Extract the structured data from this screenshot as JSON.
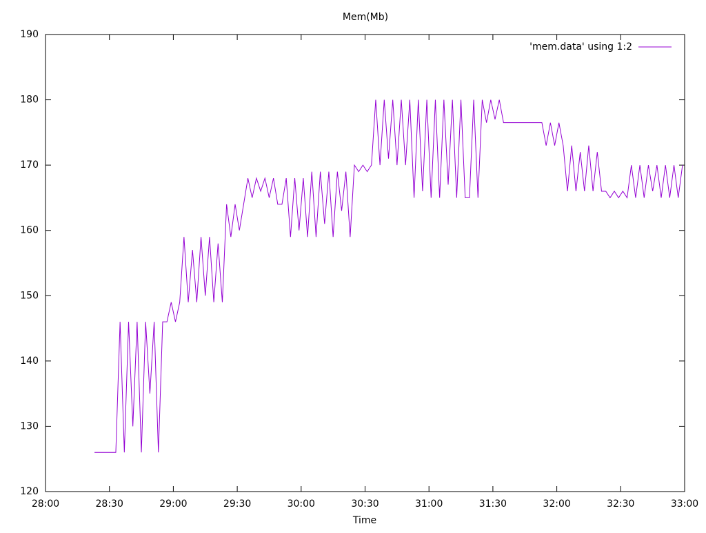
{
  "chart_data": {
    "type": "line",
    "title": "Mem(Mb)",
    "x_label": "Time",
    "x": [
      1703,
      1705,
      1707,
      1709,
      1711,
      1713,
      1715,
      1717,
      1719,
      1721,
      1723,
      1725,
      1727,
      1729,
      1731,
      1733,
      1735,
      1737,
      1739,
      1741,
      1743,
      1745,
      1747,
      1749,
      1751,
      1753,
      1755,
      1757,
      1759,
      1761,
      1763,
      1765,
      1767,
      1769,
      1771,
      1773,
      1775,
      1777,
      1779,
      1781,
      1783,
      1785,
      1787,
      1789,
      1791,
      1793,
      1795,
      1797,
      1799,
      1801,
      1803,
      1805,
      1807,
      1809,
      1811,
      1813,
      1815,
      1817,
      1819,
      1821,
      1823,
      1825,
      1827,
      1829,
      1831,
      1833,
      1835,
      1837,
      1839,
      1841,
      1843,
      1845,
      1847,
      1849,
      1851,
      1853,
      1855,
      1857,
      1859,
      1861,
      1863,
      1865,
      1867,
      1869,
      1871,
      1873,
      1875,
      1877,
      1879,
      1881,
      1883,
      1885,
      1887,
      1889,
      1891,
      1893,
      1895,
      1897,
      1899,
      1901,
      1903,
      1905,
      1907,
      1909,
      1911,
      1913,
      1915,
      1917,
      1919,
      1921,
      1923,
      1925,
      1927,
      1929,
      1931,
      1933,
      1935,
      1937,
      1939,
      1941,
      1943,
      1945,
      1947,
      1949,
      1951,
      1953,
      1955,
      1957,
      1959,
      1961,
      1963,
      1965,
      1967,
      1969,
      1971,
      1973,
      1975,
      1977,
      1979
    ],
    "series": [
      {
        "name": "'mem.data' using 1:2",
        "color": "#9400d3",
        "values": [
          126,
          126,
          126,
          126,
          126,
          126,
          146,
          126,
          146,
          130,
          146,
          126,
          146,
          135,
          146,
          126,
          146,
          146,
          149,
          146,
          149,
          159,
          149,
          157,
          149,
          159,
          150,
          159,
          149,
          158,
          149,
          164,
          159,
          164,
          160,
          164,
          168,
          165,
          168,
          166,
          168,
          165,
          168,
          164,
          164,
          168,
          159,
          168,
          160,
          168,
          159,
          169,
          159,
          169,
          161,
          169,
          159,
          169,
          163,
          169,
          159,
          170,
          169,
          170,
          169,
          170,
          180,
          170,
          180,
          171,
          180,
          170,
          180,
          170,
          180,
          165,
          180,
          166,
          180,
          165,
          180,
          165,
          180,
          167,
          180,
          165,
          180,
          165,
          165,
          180,
          165,
          180,
          176.5,
          180,
          177,
          180,
          176.5,
          176.5,
          176.5,
          176.5,
          176.5,
          176.5,
          176.5,
          176.5,
          176.5,
          176.5,
          173,
          176.5,
          173,
          176.5,
          173,
          166,
          173,
          166,
          172,
          166,
          173,
          166,
          172,
          166,
          166,
          165,
          166,
          165,
          166,
          165,
          170,
          165,
          170,
          165,
          170,
          166,
          170,
          165,
          170,
          165,
          170,
          165,
          170
        ]
      }
    ],
    "xlim": [
      1680,
      1980
    ],
    "xticks": [
      {
        "value": 1680,
        "label": "28:00"
      },
      {
        "value": 1710,
        "label": "28:30"
      },
      {
        "value": 1740,
        "label": "29:00"
      },
      {
        "value": 1770,
        "label": "29:30"
      },
      {
        "value": 1800,
        "label": "30:00"
      },
      {
        "value": 1830,
        "label": "30:30"
      },
      {
        "value": 1860,
        "label": "31:00"
      },
      {
        "value": 1890,
        "label": "31:30"
      },
      {
        "value": 1920,
        "label": "32:00"
      },
      {
        "value": 1950,
        "label": "32:30"
      },
      {
        "value": 1980,
        "label": "33:00"
      }
    ],
    "ylim": [
      120,
      190
    ],
    "yticks": [
      120,
      130,
      140,
      150,
      160,
      170,
      180,
      190
    ],
    "legend": "top-right"
  }
}
